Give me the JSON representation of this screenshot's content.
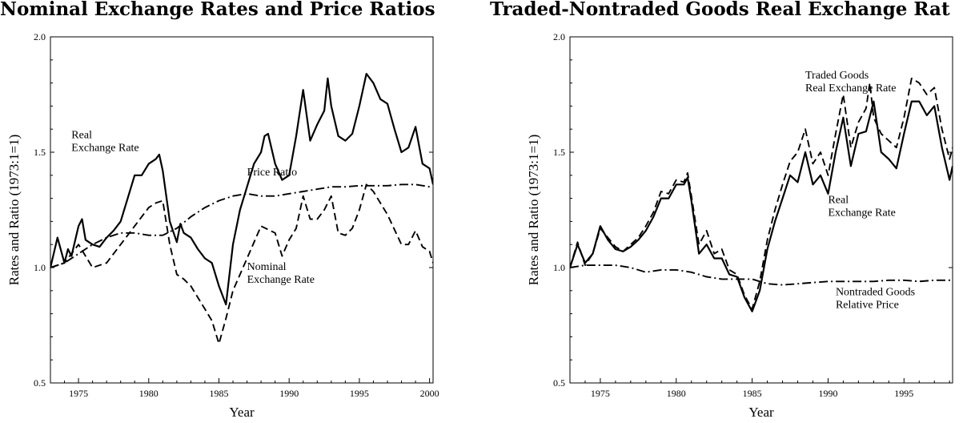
{
  "chart_data": [
    {
      "type": "line",
      "title": "Nominal Exchange Rates and Price Ratios",
      "xlabel": "Year",
      "ylabel": "Rates and Ratio (1973:1=1)",
      "xlim": [
        1973,
        2000.25
      ],
      "ylim": [
        0.5,
        2.0
      ],
      "xticks": [
        1975,
        1980,
        1985,
        1990,
        1995,
        2000
      ],
      "yticks": [
        0.5,
        1.0,
        1.5,
        2.0
      ],
      "ytick_labels": [
        "0.5",
        "1.0",
        "1.5",
        "2.0"
      ],
      "grid": false,
      "annotations": [
        {
          "lines": [
            "Real",
            "Exchange Rate"
          ],
          "x": 1974.5,
          "y": 1.56
        },
        {
          "lines": [
            "Price Ratio"
          ],
          "x": 1987.0,
          "y": 1.4
        },
        {
          "lines": [
            "Nominal",
            "Exchange Rate"
          ],
          "x": 1987.0,
          "y": 0.99
        }
      ],
      "series": [
        {
          "name": "Real Exchange Rate",
          "style": "solid",
          "x": [
            1973.0,
            1973.5,
            1974.0,
            1974.25,
            1974.5,
            1975.0,
            1975.25,
            1975.5,
            1976.0,
            1976.5,
            1977.0,
            1977.5,
            1978.0,
            1978.5,
            1979.0,
            1979.5,
            1980.0,
            1980.5,
            1980.75,
            1981.0,
            1981.5,
            1982.0,
            1982.25,
            1982.5,
            1983.0,
            1983.5,
            1984.0,
            1984.5,
            1985.0,
            1985.5,
            1986.0,
            1986.5,
            1987.0,
            1987.5,
            1988.0,
            1988.25,
            1988.5,
            1989.0,
            1989.5,
            1990.0,
            1990.5,
            1991.0,
            1991.5,
            1992.0,
            1992.5,
            1992.75,
            1993.0,
            1993.5,
            1994.0,
            1994.5,
            1995.0,
            1995.5,
            1996.0,
            1996.5,
            1997.0,
            1997.5,
            1998.0,
            1998.5,
            1999.0,
            1999.5,
            2000.0,
            2000.25
          ],
          "y": [
            1.0,
            1.13,
            1.02,
            1.08,
            1.05,
            1.18,
            1.21,
            1.12,
            1.1,
            1.09,
            1.13,
            1.16,
            1.2,
            1.3,
            1.4,
            1.4,
            1.45,
            1.47,
            1.49,
            1.42,
            1.2,
            1.11,
            1.19,
            1.15,
            1.13,
            1.08,
            1.04,
            1.02,
            0.92,
            0.84,
            1.1,
            1.25,
            1.35,
            1.45,
            1.5,
            1.57,
            1.58,
            1.45,
            1.38,
            1.4,
            1.57,
            1.77,
            1.55,
            1.62,
            1.68,
            1.82,
            1.7,
            1.57,
            1.55,
            1.58,
            1.7,
            1.84,
            1.8,
            1.73,
            1.71,
            1.6,
            1.5,
            1.52,
            1.61,
            1.45,
            1.43,
            1.36
          ]
        },
        {
          "name": "Nominal Exchange Rate",
          "style": "dashed",
          "x": [
            1973.0,
            1974.0,
            1975.0,
            1976.0,
            1977.0,
            1978.0,
            1979.0,
            1979.5,
            1980.0,
            1980.5,
            1981.0,
            1981.5,
            1982.0,
            1982.5,
            1983.0,
            1984.0,
            1984.5,
            1985.0,
            1985.5,
            1986.0,
            1987.0,
            1988.0,
            1989.0,
            1989.5,
            1990.0,
            1990.5,
            1991.0,
            1991.5,
            1992.0,
            1992.5,
            1993.0,
            1993.5,
            1994.0,
            1994.5,
            1995.0,
            1995.5,
            1996.0,
            1996.5,
            1997.0,
            1998.0,
            1998.5,
            1999.0,
            1999.5,
            2000.0,
            2000.25
          ],
          "y": [
            1.0,
            1.02,
            1.1,
            1.0,
            1.02,
            1.1,
            1.18,
            1.22,
            1.26,
            1.28,
            1.29,
            1.1,
            0.97,
            0.95,
            0.92,
            0.82,
            0.77,
            0.67,
            0.78,
            0.9,
            1.04,
            1.18,
            1.15,
            1.05,
            1.12,
            1.17,
            1.31,
            1.21,
            1.21,
            1.25,
            1.31,
            1.15,
            1.14,
            1.17,
            1.25,
            1.36,
            1.33,
            1.28,
            1.23,
            1.1,
            1.1,
            1.16,
            1.09,
            1.07,
            1.02
          ]
        },
        {
          "name": "Price Ratio",
          "style": "dash-dot",
          "x": [
            1973.0,
            1974.0,
            1975.0,
            1976.0,
            1977.0,
            1978.0,
            1979.0,
            1980.0,
            1981.0,
            1982.0,
            1983.0,
            1984.0,
            1985.0,
            1986.0,
            1987.0,
            1988.0,
            1989.0,
            1990.0,
            1991.0,
            1992.0,
            1993.0,
            1994.0,
            1995.0,
            1996.0,
            1997.0,
            1998.0,
            1999.0,
            2000.0,
            2000.25
          ],
          "y": [
            1.0,
            1.02,
            1.06,
            1.1,
            1.13,
            1.15,
            1.15,
            1.14,
            1.14,
            1.17,
            1.22,
            1.26,
            1.29,
            1.31,
            1.32,
            1.31,
            1.31,
            1.32,
            1.33,
            1.34,
            1.35,
            1.35,
            1.355,
            1.355,
            1.355,
            1.36,
            1.36,
            1.35,
            1.35
          ]
        }
      ]
    },
    {
      "type": "line",
      "title": "Traded-Nontraded Goods Real Exchange Rat",
      "xlabel": "Year",
      "ylabel": "Rates and Ratio (1973:1=1)",
      "xlim": [
        1973,
        1998.2
      ],
      "ylim": [
        0.5,
        2.0
      ],
      "xticks": [
        1975,
        1980,
        1985,
        1990,
        1995
      ],
      "yticks": [
        0.5,
        1.0,
        1.5,
        2.0
      ],
      "ytick_labels": [
        "0.5",
        "1.0",
        "1.5",
        "2.0"
      ],
      "grid": false,
      "annotations": [
        {
          "lines": [
            "Traded Goods",
            "Real Exchange Rate"
          ],
          "x": 1988.5,
          "y": 1.82
        },
        {
          "lines": [
            "Real",
            "Exchange Rate"
          ],
          "x": 1990.0,
          "y": 1.28
        },
        {
          "lines": [
            "Nontraded Goods",
            "Relative Price"
          ],
          "x": 1990.5,
          "y": 0.88
        }
      ],
      "series": [
        {
          "name": "Real Exchange Rate",
          "style": "solid",
          "x": [
            1973.0,
            1973.5,
            1974.0,
            1974.25,
            1974.5,
            1975.0,
            1975.5,
            1976.0,
            1976.5,
            1977.0,
            1977.5,
            1978.0,
            1978.5,
            1979.0,
            1979.5,
            1980.0,
            1980.5,
            1980.75,
            1981.0,
            1981.5,
            1982.0,
            1982.5,
            1983.0,
            1983.5,
            1984.0,
            1984.5,
            1985.0,
            1985.5,
            1986.0,
            1986.5,
            1987.0,
            1987.5,
            1988.0,
            1988.5,
            1989.0,
            1989.5,
            1990.0,
            1990.5,
            1991.0,
            1991.5,
            1992.0,
            1992.5,
            1993.0,
            1993.5,
            1994.0,
            1994.5,
            1995.0,
            1995.5,
            1996.0,
            1996.5,
            1997.0,
            1997.5,
            1998.0,
            1998.2
          ],
          "y": [
            1.0,
            1.1,
            1.02,
            1.04,
            1.06,
            1.18,
            1.12,
            1.08,
            1.07,
            1.09,
            1.12,
            1.16,
            1.22,
            1.3,
            1.3,
            1.36,
            1.36,
            1.39,
            1.29,
            1.06,
            1.1,
            1.04,
            1.04,
            0.97,
            0.96,
            0.87,
            0.81,
            0.9,
            1.08,
            1.2,
            1.3,
            1.4,
            1.37,
            1.5,
            1.36,
            1.4,
            1.32,
            1.5,
            1.65,
            1.44,
            1.58,
            1.59,
            1.72,
            1.5,
            1.47,
            1.43,
            1.58,
            1.72,
            1.72,
            1.66,
            1.7,
            1.52,
            1.38,
            1.44
          ]
        },
        {
          "name": "Traded Goods Real Exchange Rate",
          "style": "dashed",
          "x": [
            1973.0,
            1973.5,
            1974.0,
            1974.5,
            1975.0,
            1975.5,
            1976.0,
            1976.5,
            1977.0,
            1977.5,
            1978.0,
            1978.5,
            1979.0,
            1979.5,
            1980.0,
            1980.5,
            1980.75,
            1981.0,
            1981.5,
            1982.0,
            1982.5,
            1983.0,
            1983.5,
            1984.0,
            1984.5,
            1985.0,
            1985.5,
            1986.0,
            1986.5,
            1987.0,
            1987.5,
            1988.0,
            1988.5,
            1989.0,
            1989.5,
            1990.0,
            1990.5,
            1991.0,
            1991.5,
            1992.0,
            1992.5,
            1992.75,
            1993.0,
            1993.5,
            1994.0,
            1994.5,
            1995.0,
            1995.5,
            1996.0,
            1996.5,
            1997.0,
            1997.5,
            1998.0,
            1998.2
          ],
          "y": [
            1.0,
            1.11,
            1.01,
            1.06,
            1.17,
            1.13,
            1.09,
            1.07,
            1.1,
            1.13,
            1.18,
            1.24,
            1.33,
            1.32,
            1.38,
            1.37,
            1.41,
            1.31,
            1.1,
            1.16,
            1.06,
            1.08,
            0.99,
            0.97,
            0.88,
            0.82,
            0.94,
            1.12,
            1.25,
            1.36,
            1.46,
            1.5,
            1.6,
            1.45,
            1.5,
            1.4,
            1.58,
            1.75,
            1.52,
            1.63,
            1.69,
            1.8,
            1.65,
            1.58,
            1.55,
            1.52,
            1.65,
            1.82,
            1.8,
            1.75,
            1.78,
            1.6,
            1.47,
            1.52
          ]
        },
        {
          "name": "Nontraded Goods Relative Price",
          "style": "dash-dot",
          "x": [
            1973.0,
            1974.0,
            1975.0,
            1976.0,
            1977.0,
            1978.0,
            1979.0,
            1980.0,
            1981.0,
            1982.0,
            1983.0,
            1984.0,
            1985.0,
            1986.0,
            1987.0,
            1988.0,
            1989.0,
            1990.0,
            1991.0,
            1992.0,
            1993.0,
            1994.0,
            1995.0,
            1996.0,
            1997.0,
            1998.0,
            1998.2
          ],
          "y": [
            1.0,
            1.01,
            1.01,
            1.01,
            1.0,
            0.98,
            0.99,
            0.99,
            0.98,
            0.96,
            0.95,
            0.95,
            0.95,
            0.93,
            0.925,
            0.93,
            0.935,
            0.94,
            0.94,
            0.94,
            0.94,
            0.945,
            0.945,
            0.94,
            0.945,
            0.945,
            0.945
          ]
        }
      ]
    }
  ]
}
